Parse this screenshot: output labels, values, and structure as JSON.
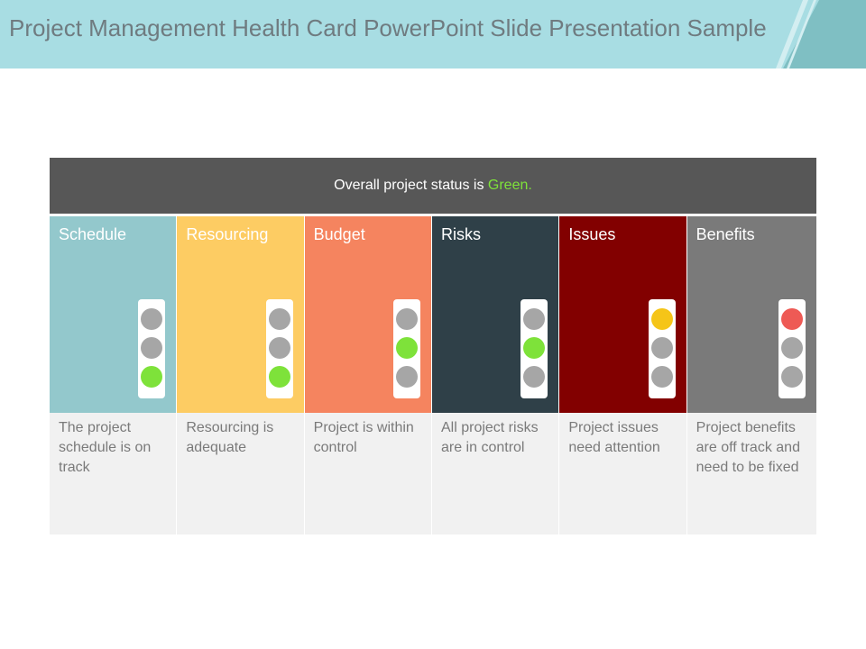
{
  "slide": {
    "title": "Project Management Health Card PowerPoint Slide Presentation Sample"
  },
  "banner": {
    "text_before": "Overall project status is ",
    "highlight": "Green."
  },
  "colors": {
    "header_bg": "#a8dde3",
    "accent_teal": "#7fbfc3",
    "banner_bg": "#575757",
    "light_off": "#a6a6a6",
    "light_green": "#7ee23a",
    "light_yellow": "#f5c518",
    "light_red": "#ee5a55"
  },
  "categories": [
    {
      "label": "Schedule",
      "color": "#93c8cc",
      "lit": 2,
      "lit_color": "#7ee23a",
      "description": "The project schedule is on track"
    },
    {
      "label": "Resourcing",
      "color": "#fdcc63",
      "lit": 2,
      "lit_color": "#7ee23a",
      "description": "Resourcing is adequate"
    },
    {
      "label": "Budget",
      "color": "#f5845f",
      "lit": 1,
      "lit_color": "#7ee23a",
      "description": "Project is within control"
    },
    {
      "label": "Risks",
      "color": "#2f4048",
      "lit": 1,
      "lit_color": "#7ee23a",
      "description": "All project risks are in control"
    },
    {
      "label": "Issues",
      "color": "#820000",
      "lit": 0,
      "lit_color": "#f5c518",
      "description": "Project issues need attention"
    },
    {
      "label": "Benefits",
      "color": "#7a7a7a",
      "lit": 0,
      "lit_color": "#ee5a55",
      "description": "Project benefits are off track and need to be fixed"
    }
  ]
}
